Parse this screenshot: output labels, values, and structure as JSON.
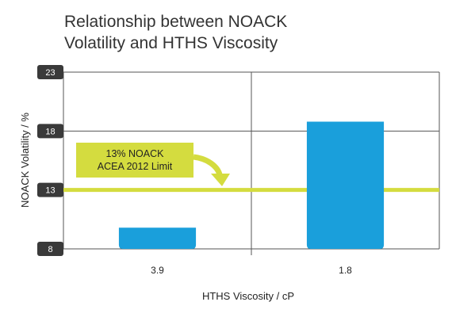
{
  "chart_data": {
    "type": "bar",
    "title_lines": [
      "Relationship between NOACK",
      "Volatility and HTHS Viscosity"
    ],
    "xlabel": "HTHS Viscosity / cP",
    "ylabel": "NOACK Volatility / %",
    "categories": [
      "3.9",
      "1.8"
    ],
    "values": [
      9.8,
      18.8
    ],
    "ylim": [
      8,
      23
    ],
    "yticks": [
      8,
      13,
      18,
      23
    ],
    "grid": true,
    "reference_line": {
      "value": 13,
      "label_lines": [
        "13% NOACK",
        "ACEA 2012 Limit"
      ]
    },
    "colors": {
      "bar": "#1a9fdb",
      "limit_line": "#d4dc3f",
      "annotation_box": "#d4dc3f",
      "tick_badge": "#3a3a3a",
      "grid": "#555555"
    }
  }
}
